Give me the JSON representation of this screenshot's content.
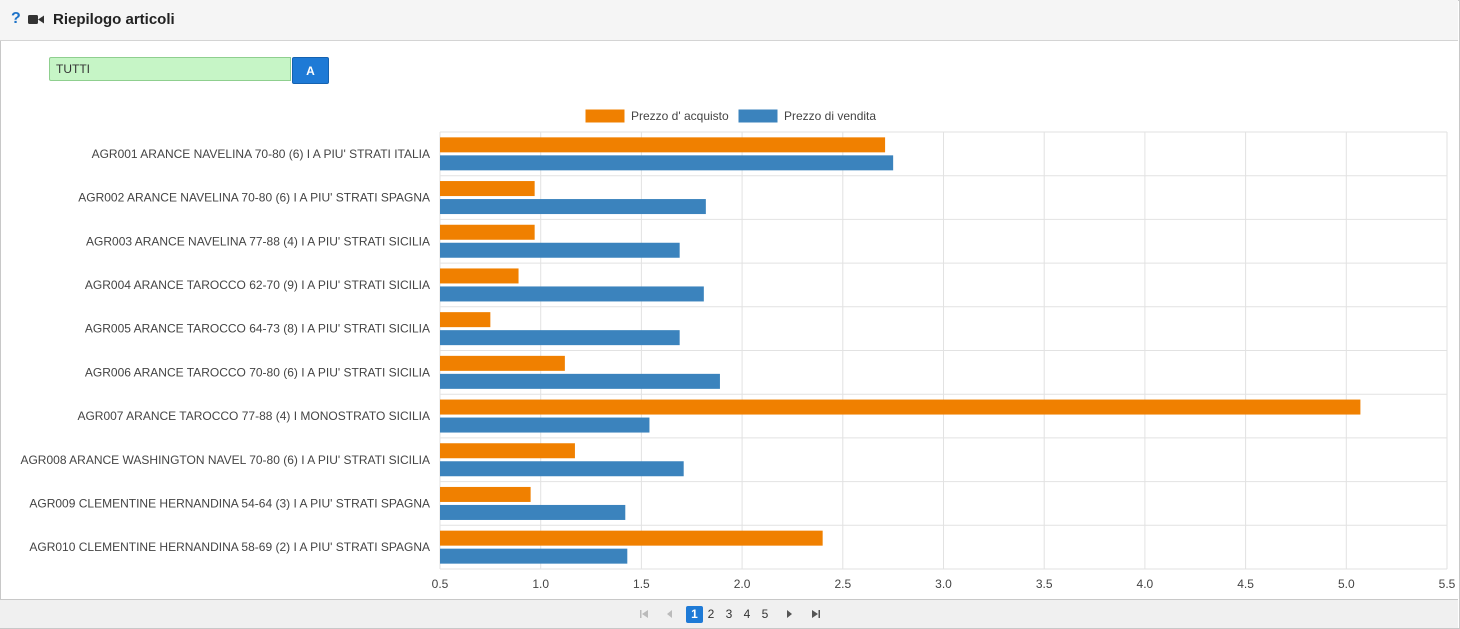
{
  "header": {
    "title": "Riepilogo articoli",
    "help_icon": "?"
  },
  "filter": {
    "value": "TUTTI",
    "button_label": "A"
  },
  "colors": {
    "purchase": "#f08000",
    "sale": "#3b83bd",
    "accent": "#1e7ad6"
  },
  "chart_data": {
    "type": "bar",
    "orientation": "horizontal",
    "legend_position": "top-center",
    "grid": true,
    "xlim": [
      0.5,
      5.5
    ],
    "xticks": [
      "0.5",
      "1.0",
      "1.5",
      "2.0",
      "2.5",
      "3.0",
      "3.5",
      "4.0",
      "4.5",
      "5.0",
      "5.5"
    ],
    "categories": [
      "AGR001 ARANCE NAVELINA 70-80 (6) I A PIU' STRATI    ITALIA",
      "AGR002 ARANCE NAVELINA 70-80 (6) I A PIU' STRATI    SPAGNA",
      "AGR003 ARANCE NAVELINA 77-88 (4) I A PIU' STRATI    SICILIA",
      "AGR004 ARANCE TAROCCO 62-70 (9) I A PIU' STRATI    SICILIA",
      "AGR005 ARANCE TAROCCO 64-73 (8) I A PIU' STRATI    SICILIA",
      "AGR006 ARANCE TAROCCO 70-80 (6) I A PIU' STRATI    SICILIA",
      "AGR007 ARANCE TAROCCO 77-88 (4) I MONOSTRATO    SICILIA",
      "AGR008 ARANCE WASHINGTON NAVEL 70-80 (6) I A PIU' STRATI    SICILIA",
      "AGR009 CLEMENTINE HERNANDINA 54-64 (3) I A PIU' STRATI    SPAGNA",
      "AGR010 CLEMENTINE HERNANDINA 58-69 (2) I A PIU' STRATI    SPAGNA"
    ],
    "series": [
      {
        "name": "Prezzo d' acquisto",
        "values": [
          2.71,
          0.97,
          0.97,
          0.89,
          0.75,
          1.12,
          5.07,
          1.17,
          0.95,
          2.4
        ]
      },
      {
        "name": "Prezzo di vendita",
        "values": [
          2.75,
          1.82,
          1.69,
          1.81,
          1.69,
          1.89,
          1.54,
          1.71,
          1.42,
          1.43
        ]
      }
    ]
  },
  "pagination": {
    "pages": [
      "1",
      "2",
      "3",
      "4",
      "5"
    ],
    "current": "1"
  }
}
